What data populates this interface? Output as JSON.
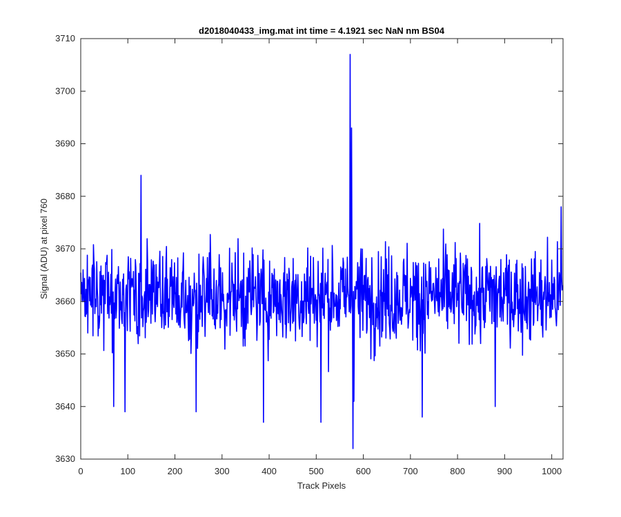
{
  "chart_data": {
    "type": "line",
    "title": "d2018040433_img.mat int time = 4.1921 sec  NaN nm BS04",
    "xlabel": "Track Pixels",
    "ylabel": "Signal (ADU) at pixel 760",
    "xlim": [
      0,
      1024
    ],
    "ylim": [
      3630,
      3710
    ],
    "xticks": [
      0,
      100,
      200,
      300,
      400,
      500,
      600,
      700,
      800,
      900,
      1000
    ],
    "yticks": [
      3630,
      3640,
      3650,
      3660,
      3670,
      3680,
      3690,
      3700,
      3710
    ],
    "grid": false,
    "box": true,
    "series": [
      {
        "color": "#0000ff",
        "n_points": 1024,
        "baseline": 3661,
        "noise_range": [
          3637,
          3685
        ],
        "notable_points": [
          {
            "x": 70,
            "y": 3685
          },
          {
            "x": 70,
            "y": 3640
          },
          {
            "x": 94,
            "y": 3639
          },
          {
            "x": 128,
            "y": 3684
          },
          {
            "x": 245,
            "y": 3639
          },
          {
            "x": 388,
            "y": 3637
          },
          {
            "x": 510,
            "y": 3637
          },
          {
            "x": 572,
            "y": 3707
          },
          {
            "x": 575,
            "y": 3693
          },
          {
            "x": 578,
            "y": 3632
          },
          {
            "x": 580,
            "y": 3641
          },
          {
            "x": 725,
            "y": 3638
          },
          {
            "x": 880,
            "y": 3640
          },
          {
            "x": 1020,
            "y": 3678
          }
        ]
      }
    ]
  }
}
